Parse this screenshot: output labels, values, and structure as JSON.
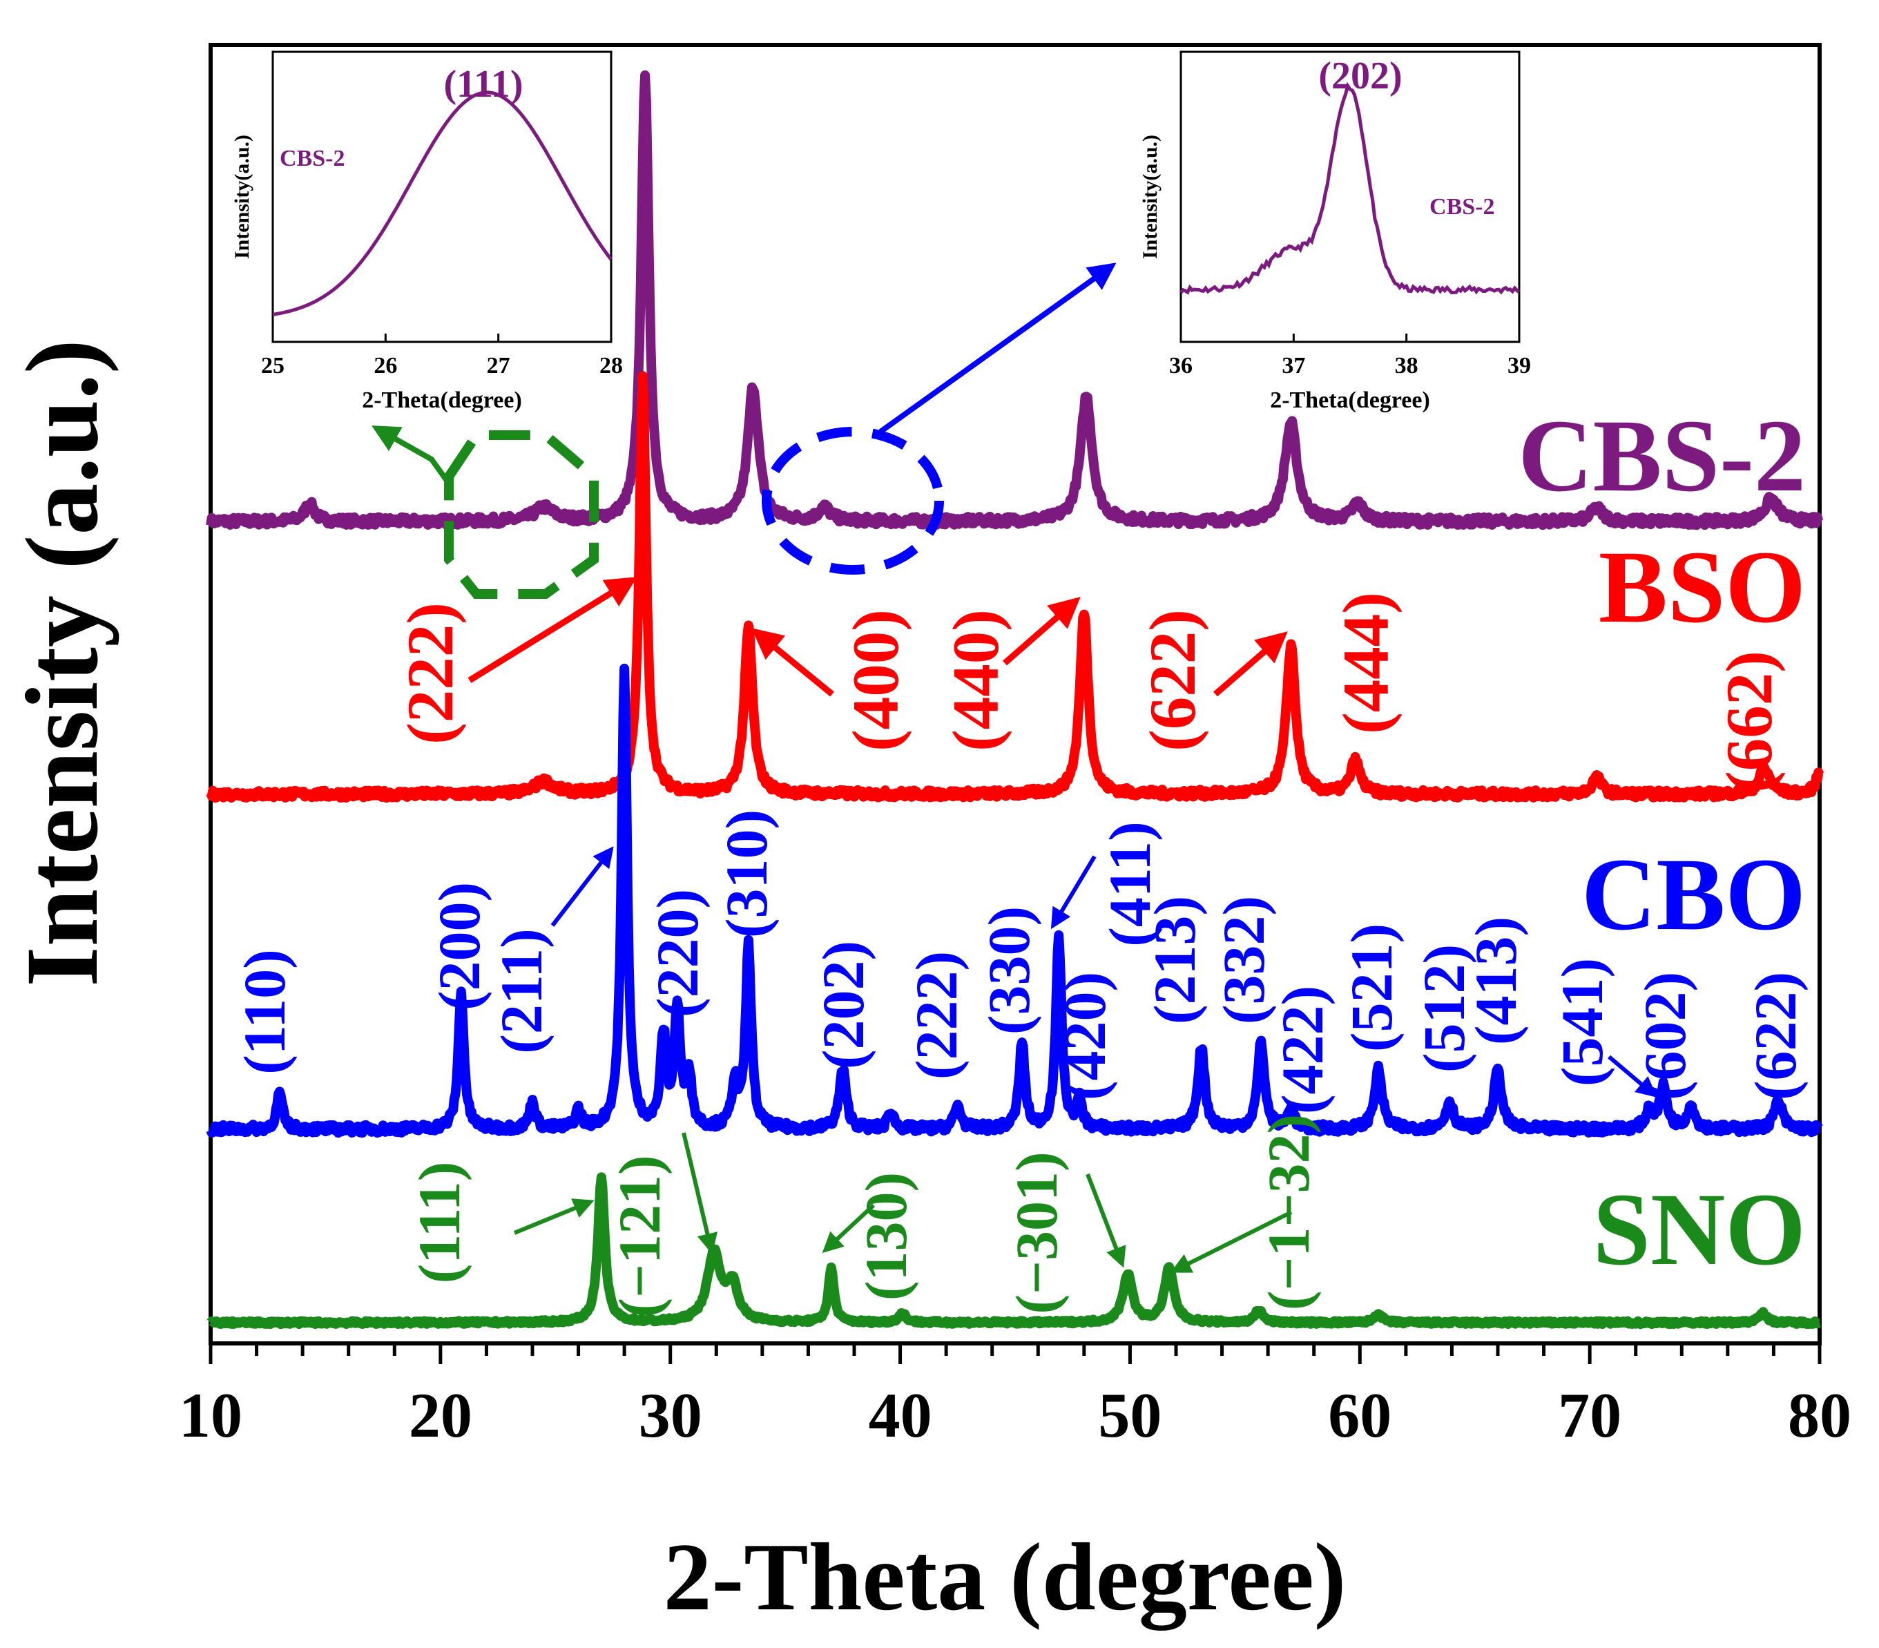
{
  "chart_data": {
    "type": "line",
    "title": "",
    "xlabel": "2-Theta (degree)",
    "ylabel": "Intensity (a.u.)",
    "xlim": [
      10,
      80
    ],
    "x_ticks": [
      10,
      20,
      30,
      40,
      50,
      60,
      70,
      80
    ],
    "colors": {
      "CBS-2": "#7d1a7f",
      "BSO": "#ff0000",
      "CBO": "#0000ff",
      "SNO": "#1a8a1a",
      "axis": "#000000"
    },
    "series": [
      {
        "name": "CBS-2",
        "baseline": 0.0,
        "peaks": [
          [
            14.3,
            0.04,
            0.25
          ],
          [
            24.5,
            0.03,
            0.5
          ],
          [
            28.9,
            1.0,
            0.2
          ],
          [
            33.6,
            0.3,
            0.28
          ],
          [
            36.7,
            0.03,
            0.3
          ],
          [
            48.1,
            0.28,
            0.3
          ],
          [
            57.0,
            0.22,
            0.32
          ],
          [
            59.9,
            0.04,
            0.3
          ],
          [
            70.3,
            0.03,
            0.3
          ],
          [
            77.9,
            0.05,
            0.35
          ]
        ]
      },
      {
        "name": "BSO",
        "baseline": 0.0,
        "peaks": [
          [
            24.5,
            0.03,
            0.5
          ],
          [
            28.8,
            1.0,
            0.18
          ],
          [
            33.4,
            0.4,
            0.22
          ],
          [
            48.0,
            0.44,
            0.22
          ],
          [
            57.0,
            0.36,
            0.24
          ],
          [
            59.8,
            0.08,
            0.25
          ],
          [
            70.3,
            0.04,
            0.25
          ],
          [
            77.6,
            0.06,
            0.3
          ],
          [
            80.0,
            0.05,
            0.2
          ]
        ]
      },
      {
        "name": "CBO",
        "baseline": 0.0,
        "peaks": [
          [
            13.0,
            0.08,
            0.15
          ],
          [
            20.9,
            0.3,
            0.15
          ],
          [
            24.0,
            0.06,
            0.15
          ],
          [
            26.0,
            0.04,
            0.15
          ],
          [
            28.0,
            1.0,
            0.15
          ],
          [
            29.7,
            0.2,
            0.15
          ],
          [
            30.3,
            0.26,
            0.15
          ],
          [
            30.8,
            0.12,
            0.15
          ],
          [
            32.8,
            0.1,
            0.15
          ],
          [
            33.4,
            0.4,
            0.15
          ],
          [
            37.5,
            0.13,
            0.18
          ],
          [
            39.6,
            0.04,
            0.15
          ],
          [
            42.5,
            0.05,
            0.18
          ],
          [
            45.3,
            0.19,
            0.15
          ],
          [
            46.9,
            0.42,
            0.15
          ],
          [
            47.8,
            0.06,
            0.15
          ],
          [
            53.1,
            0.18,
            0.18
          ],
          [
            55.7,
            0.19,
            0.18
          ],
          [
            57.0,
            0.05,
            0.15
          ],
          [
            60.8,
            0.13,
            0.2
          ],
          [
            63.9,
            0.06,
            0.2
          ],
          [
            66.0,
            0.13,
            0.2
          ],
          [
            72.6,
            0.04,
            0.2
          ],
          [
            73.2,
            0.09,
            0.2
          ],
          [
            74.4,
            0.05,
            0.2
          ],
          [
            78.2,
            0.06,
            0.22
          ]
        ]
      },
      {
        "name": "SNO",
        "baseline": 0.0,
        "peaks": [
          [
            27.0,
            0.8,
            0.18
          ],
          [
            31.9,
            0.38,
            0.35
          ],
          [
            32.7,
            0.2,
            0.3
          ],
          [
            37.0,
            0.3,
            0.15
          ],
          [
            40.1,
            0.05,
            0.2
          ],
          [
            49.9,
            0.27,
            0.25
          ],
          [
            51.7,
            0.3,
            0.25
          ],
          [
            55.6,
            0.07,
            0.2
          ],
          [
            60.8,
            0.05,
            0.2
          ],
          [
            77.5,
            0.06,
            0.2
          ]
        ]
      }
    ],
    "labels": {
      "series_names": [
        "CBS-2",
        "BSO",
        "CBO",
        "SNO"
      ],
      "bso_hkl": [
        "(222)",
        "(400)",
        "(440)",
        "(622)",
        "(444)",
        "(662)"
      ],
      "cbo_hkl": [
        "(110)",
        "(200)",
        "(211)",
        "(220)",
        "(310)",
        "(202)",
        "(222)",
        "(330)",
        "(411)",
        "(420)",
        "(213)",
        "(332)",
        "(422)",
        "(521)",
        "(512)",
        "(413)",
        "(541)",
        "(602)",
        "(622)"
      ],
      "sno_hkl": [
        "(111)",
        "(−121)",
        "(130)",
        "(−301)",
        "(−1−32)"
      ]
    },
    "insets": [
      {
        "series": "CBS-2",
        "hkl": "(111)",
        "xlim": [
          25,
          28
        ],
        "x_ticks": [
          25,
          26,
          27,
          28
        ],
        "xlabel": "2-Theta(degree)",
        "ylabel": "Intensity(a.u.)",
        "legend": "CBS-2",
        "shape": "broad-peak",
        "center": 26.9
      },
      {
        "series": "CBS-2",
        "hkl": "(202)",
        "xlim": [
          36,
          39
        ],
        "x_ticks": [
          36,
          37,
          38,
          39
        ],
        "xlabel": "2-Theta(degree)",
        "ylabel": "Intensity(a.u.)",
        "legend": "CBS-2",
        "shape": "narrow-peak",
        "center": 37.5
      }
    ]
  }
}
